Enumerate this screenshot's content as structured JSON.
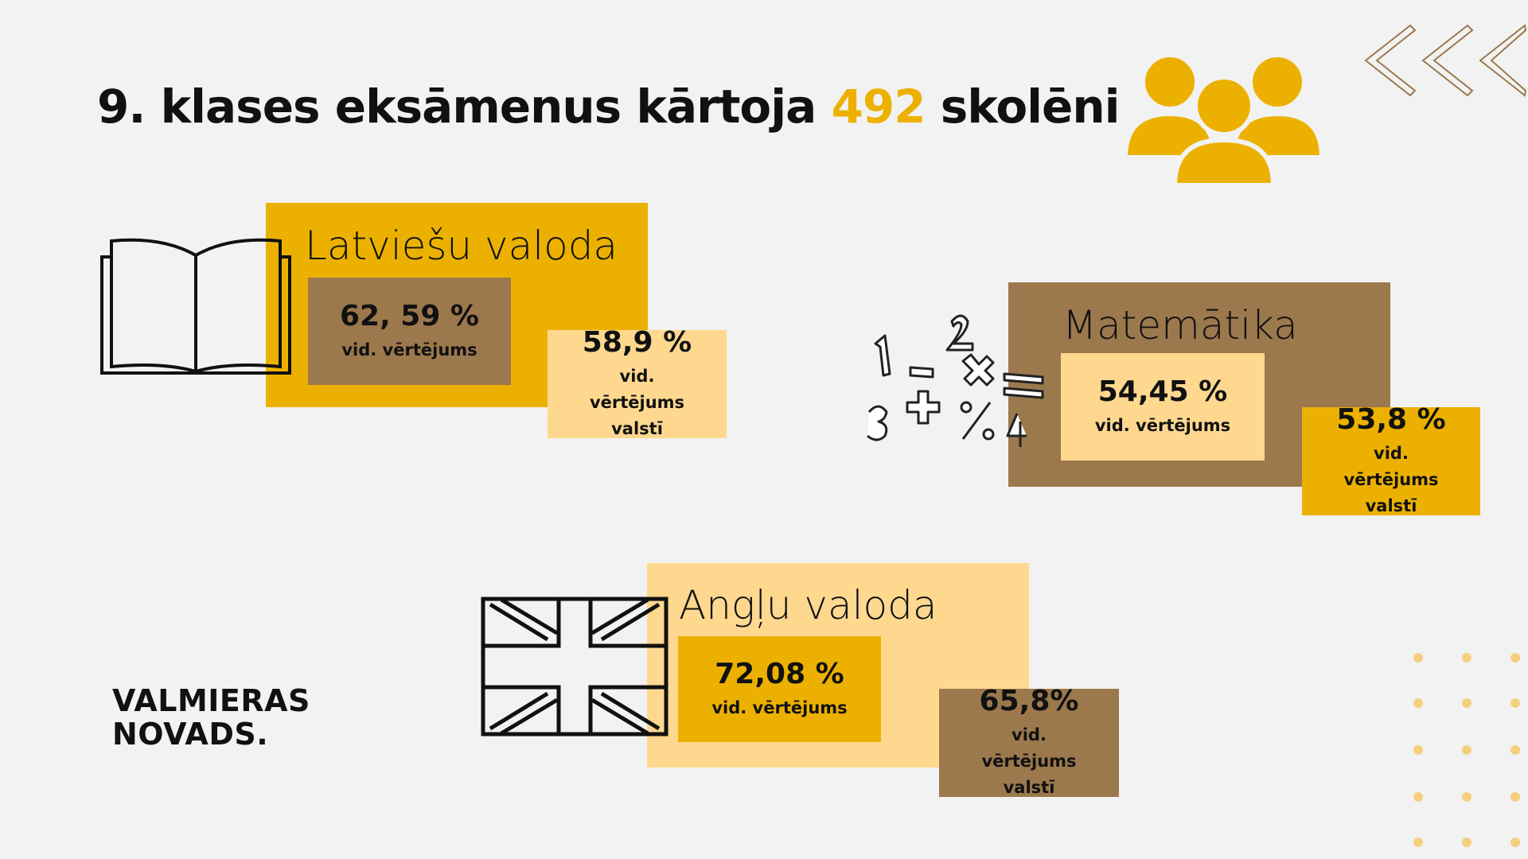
{
  "header": {
    "title_before": "9. klases eksāmenus kārtoja",
    "title_number": "492",
    "title_after": "skolēni"
  },
  "subjects": [
    {
      "name": "Latviešu valoda",
      "score": "62, 59 %",
      "score_label": "vid. vērtējums",
      "national": "58,9 %",
      "national_label": "vid. vērtējums valstī"
    },
    {
      "name": "Matemātika",
      "score": "54,45 %",
      "score_label": "vid. vērtējums",
      "national": "53,8 %",
      "national_label": "vid. vērtējums valstī"
    },
    {
      "name": "Angļu valoda",
      "score": "72,08 %",
      "score_label": "vid. vērtējums",
      "national": "65,8%",
      "national_label": "vid. vērtējums valstī"
    }
  ],
  "logo": {
    "line1": "VALMIERAS",
    "line2": "NOVADS."
  }
}
